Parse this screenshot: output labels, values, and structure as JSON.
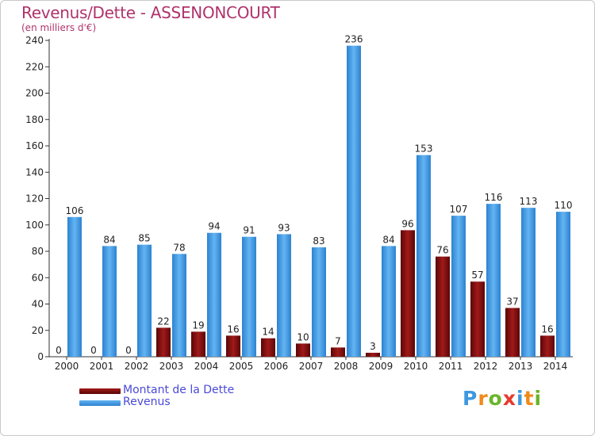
{
  "chart_data": {
    "type": "bar",
    "title": "Revenus/Dette - ASSENONCOURT",
    "subtitle": "(en milliers d'€)",
    "categories": [
      "2000",
      "2001",
      "2002",
      "2003",
      "2004",
      "2005",
      "2006",
      "2007",
      "2008",
      "2009",
      "2010",
      "2011",
      "2012",
      "2013",
      "2014"
    ],
    "series": [
      {
        "name": "Montant de la Dette",
        "color": "#7a0c0c",
        "values": [
          0,
          0,
          0,
          22,
          19,
          16,
          14,
          10,
          7,
          3,
          96,
          76,
          57,
          37,
          16
        ]
      },
      {
        "name": "Revenus",
        "color": "#3d98e0",
        "values": [
          106,
          84,
          85,
          78,
          94,
          91,
          93,
          83,
          236,
          84,
          153,
          107,
          116,
          113,
          110
        ]
      }
    ],
    "ylim": [
      0,
      240
    ],
    "yticks": [
      0,
      20,
      40,
      60,
      80,
      100,
      120,
      140,
      160,
      180,
      200,
      220,
      240
    ],
    "grid": false,
    "legend_position": "bottom-left"
  },
  "logo": {
    "letters": [
      "P",
      "r",
      "o",
      "x",
      "i",
      "t",
      "i"
    ],
    "colors": [
      "#3d98e0",
      "#f08a1c",
      "#6ab52a",
      "#e63a2c",
      "#3d98e0",
      "#f08a1c",
      "#6ab52a"
    ]
  }
}
